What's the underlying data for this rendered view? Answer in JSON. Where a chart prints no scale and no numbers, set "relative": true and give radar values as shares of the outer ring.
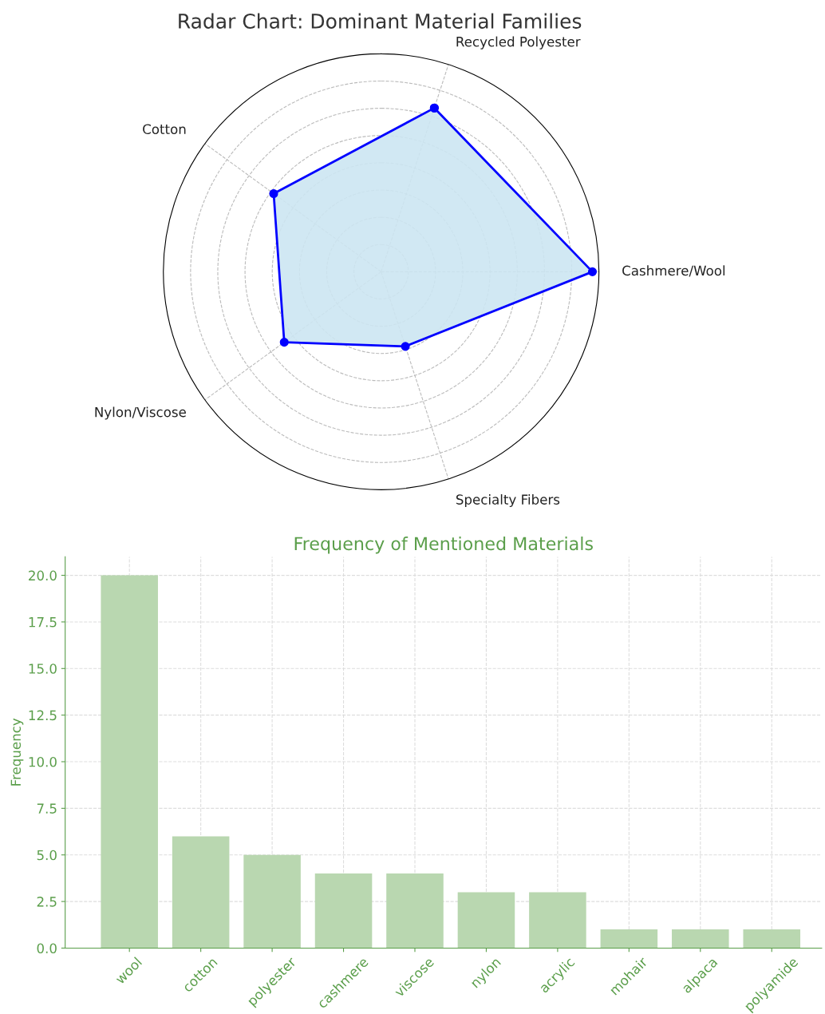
{
  "chart_data": [
    {
      "type": "radar",
      "title": "Radar Chart: Dominant Material Families",
      "relative": true,
      "grid": true,
      "marker": "circle",
      "line_style": "solid",
      "categories": [
        "Recycled Polyester",
        "Cashmere/Wool",
        "Specialty Fibers",
        "Nylon/Viscose",
        "Cotton"
      ],
      "series": [
        {
          "color": "#0000ff",
          "values": [
            0.79,
            0.97,
            0.36,
            0.55,
            0.61
          ]
        }
      ]
    },
    {
      "type": "bar",
      "title": "Frequency of Mentioned Materials",
      "ylabel": "Frequency",
      "grid": true,
      "color": "#b9d7b0",
      "categories": [
        "wool",
        "cotton",
        "polyester",
        "cashmere",
        "viscose",
        "nylon",
        "acrylic",
        "mohair",
        "alpaca",
        "polyamide"
      ],
      "values": [
        20,
        6,
        5,
        4,
        4,
        3,
        3,
        1,
        1,
        1
      ],
      "ylim": [
        0,
        21
      ],
      "yticks": [
        {
          "value": 0,
          "label": "0.0"
        },
        {
          "value": 2.5,
          "label": "2.5"
        },
        {
          "value": 5,
          "label": "5.0"
        },
        {
          "value": 7.5,
          "label": "7.5"
        },
        {
          "value": 10,
          "label": "10.0"
        },
        {
          "value": 12.5,
          "label": "12.5"
        },
        {
          "value": 15,
          "label": "15.0"
        },
        {
          "value": 17.5,
          "label": "17.5"
        },
        {
          "value": 20,
          "label": "20.0"
        }
      ]
    }
  ]
}
